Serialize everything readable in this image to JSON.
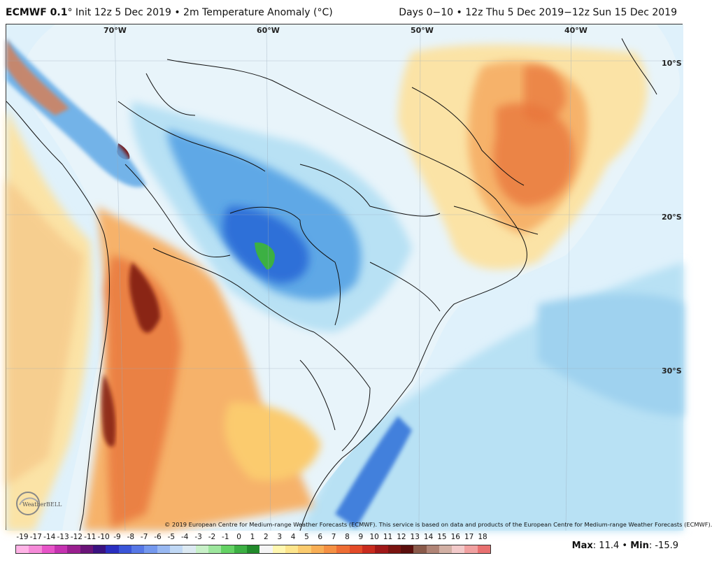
{
  "header": {
    "model": "ECMWF 0.1",
    "degree": "°",
    "init": " Init 12z 5 Dec 2019 • 2m Temperature Anomaly (°C)",
    "range": "Days 0−10 • 12z Thu 5 Dec 2019−12z Sun 15 Dec 2019"
  },
  "map": {
    "longitude_labels": [
      "70°W",
      "60°W",
      "50°W",
      "40°W"
    ],
    "latitude_labels": [
      "10°S",
      "20°S",
      "30°S"
    ],
    "colors": {
      "ocean": "#dff1fb",
      "cold_light": "#b8e1f4",
      "cold_mid": "#5fa8e6",
      "cold_strong": "#2d6fd8",
      "cold_core": "#3cb043",
      "warm_light": "#fbe3a6",
      "warm_mid": "#f6b26b",
      "warm_strong": "#e8753a",
      "warm_extreme": "#7a1410",
      "borders": "#111111"
    }
  },
  "copyright": "© 2019 European Centre for Medium-range Weather Forecasts (ECMWF). This service is based on data and products of the European Centre for Medium-range Weather Forecasts (ECMWF).",
  "logo": {
    "text": "WeatherBELL"
  },
  "legend": {
    "labels": [
      "-19",
      "-17",
      "-14",
      "-13",
      "-12",
      "-11",
      "-10",
      "-9",
      "-8",
      "-7",
      "-6",
      "-5",
      "-4",
      "-3",
      "-2",
      "-1",
      "0",
      "1",
      "2",
      "3",
      "4",
      "5",
      "6",
      "7",
      "8",
      "9",
      "10",
      "11",
      "12",
      "13",
      "14",
      "15",
      "16",
      "17",
      "18"
    ],
    "colors": [
      "#ffb3e6",
      "#f58ad8",
      "#e754c8",
      "#c532b0",
      "#9a1f8f",
      "#6a1478",
      "#3a1280",
      "#2a2ec0",
      "#3a55d8",
      "#5677e6",
      "#7498ee",
      "#98b8f2",
      "#c0d8f5",
      "#dce9f2",
      "#c8f0c8",
      "#9de69d",
      "#64d264",
      "#3cb043",
      "#218a2b",
      "#f5f5f5",
      "#fff7b0",
      "#fde58c",
      "#fbcb6e",
      "#f8ae55",
      "#f59043",
      "#ee6d34",
      "#e34a28",
      "#c92b1e",
      "#a01818",
      "#7a1410",
      "#5a0e0c",
      "#8a5a4a",
      "#b08476",
      "#d2b0a4",
      "#f2c9c9",
      "#f0a0a0",
      "#e87070"
    ]
  },
  "stats": {
    "max_label": "Max",
    "max_value": ": 11.4",
    "sep": " • ",
    "min_label": "Min",
    "min_value": ": -15.9"
  }
}
